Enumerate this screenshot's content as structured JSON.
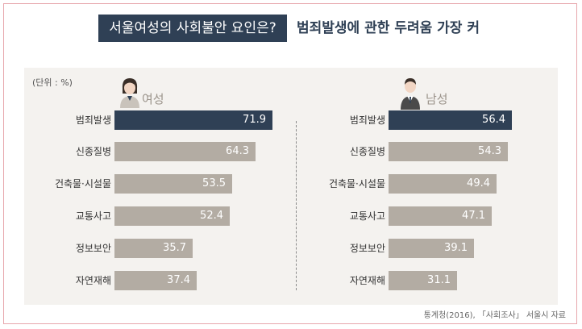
{
  "title": "서울여성의 사회불안 요인은?",
  "subtitle": "범죄발생에 관한 두려움 가장 커",
  "unit": "(단위 : %)",
  "source": "통계청(2016), 「사회조사」 서울시 자료",
  "colors": {
    "highlight": "#2f4055",
    "bar": "#b3aca3",
    "panel": "#f4f2ef",
    "border": "#e7a7ad"
  },
  "chart_data": [
    {
      "type": "bar",
      "title": "여성",
      "categories": [
        "범죄발생",
        "신종질병",
        "건축물·시설물",
        "교통사고",
        "정보보안",
        "자연재해"
      ],
      "values": [
        71.9,
        64.3,
        53.5,
        52.4,
        35.7,
        37.4
      ],
      "highlight_index": 0,
      "icon": "woman-icon"
    },
    {
      "type": "bar",
      "title": "남성",
      "categories": [
        "범죄발생",
        "신종질병",
        "건축물·시설물",
        "교통사고",
        "정보보안",
        "자연재해"
      ],
      "values": [
        56.4,
        54.3,
        49.4,
        47.1,
        39.1,
        31.1
      ],
      "highlight_index": 0,
      "icon": "man-icon"
    }
  ]
}
